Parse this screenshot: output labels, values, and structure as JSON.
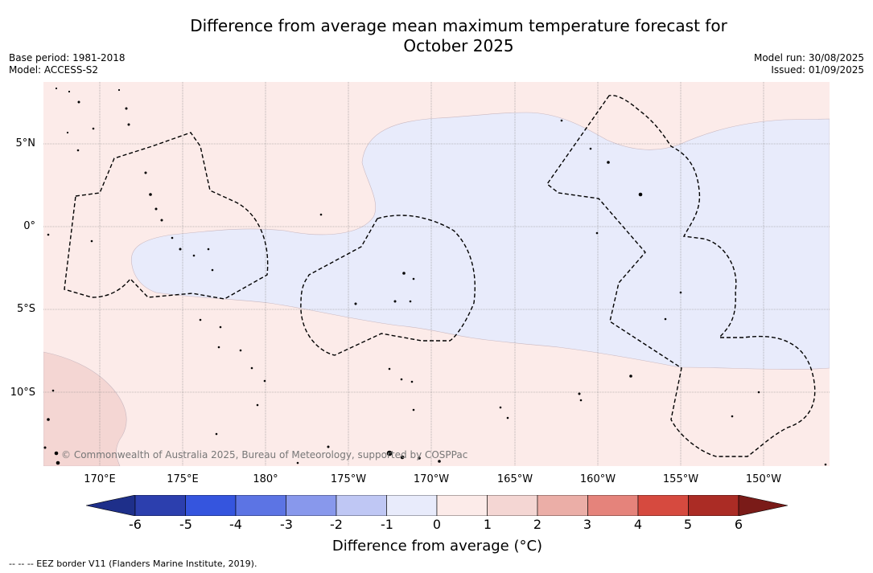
{
  "header": {
    "title_line1": "Difference from average mean maximum temperature forecast for",
    "title_line2": "October 2025",
    "base_period": "Base period: 1981-2018",
    "model": "Model: ACCESS-S2",
    "model_run": "Model run: 30/08/2025",
    "issued": "Issued: 01/09/2025"
  },
  "map": {
    "lat_labels": [
      "5°N",
      "0°",
      "5°S",
      "10°S"
    ],
    "lon_labels": [
      "170°E",
      "175°E",
      "180°",
      "175°W",
      "170°W",
      "165°W",
      "160°W",
      "155°W",
      "150°W"
    ],
    "credit": "© Commonwealth of Australia 2025, Bureau of Meteorology, supported by COSPPac",
    "colors": {
      "ocean_slightly_warm": "#fcebe9",
      "slightly_cool": "#e8ebfb",
      "warm_1_2": "#f4d6d3",
      "land_outline": "#000000"
    }
  },
  "colorbar": {
    "title": "Difference from average (°C)",
    "ticks": [
      "-6",
      "-5",
      "-4",
      "-3",
      "-2",
      "-1",
      "0",
      "1",
      "2",
      "3",
      "4",
      "5",
      "6"
    ],
    "colors": [
      "#1e2f8a",
      "#2c3fae",
      "#3555de",
      "#5c74e4",
      "#8898ec",
      "#bfc7f4",
      "#e8ebfb",
      "#fcebe9",
      "#f4d6d3",
      "#ebaea7",
      "#e5837b",
      "#d64a3f",
      "#ab2c25",
      "#7a1b18"
    ]
  },
  "footnote": "--  --  -- EEZ border V11 (Flanders Marine Institute, 2019)."
}
